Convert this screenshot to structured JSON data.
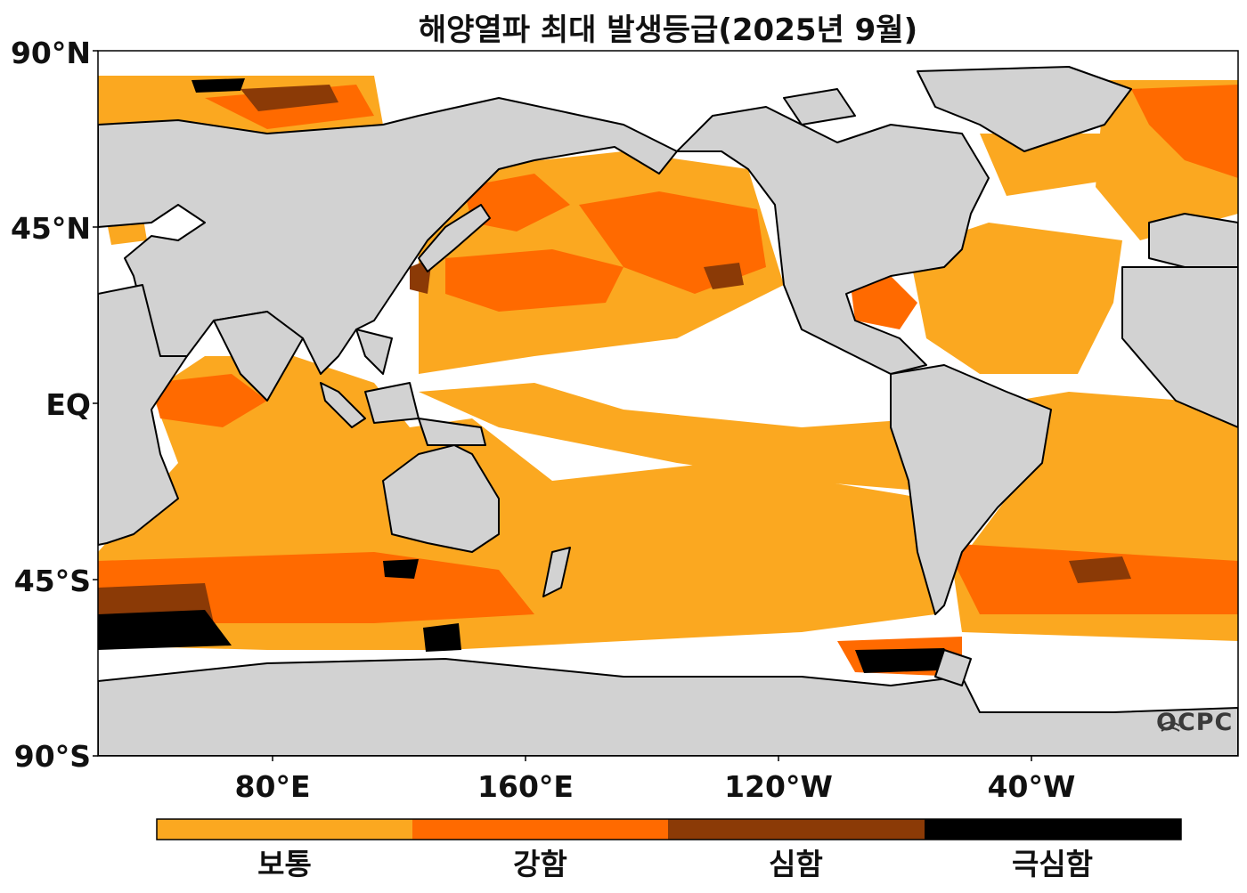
{
  "title": "해양열파 최대 발생등급(2025년 9월)",
  "lat_labels": [
    "90°N",
    "45°N",
    "EQ",
    "45°S",
    "90°S"
  ],
  "lon_labels": [
    "80°E",
    "160°E",
    "120°W",
    "40°W"
  ],
  "legend": {
    "items": [
      {
        "label": "보통",
        "color": "#FBA820"
      },
      {
        "label": "강함",
        "color": "#FF6A00"
      },
      {
        "label": "심함",
        "color": "#8B3A06"
      },
      {
        "label": "극심함",
        "color": "#000000"
      }
    ]
  },
  "colors": {
    "land": "#D2D2D2",
    "ocean": "#FFFFFF",
    "coast": "#000000"
  },
  "logo": "OCPC"
}
